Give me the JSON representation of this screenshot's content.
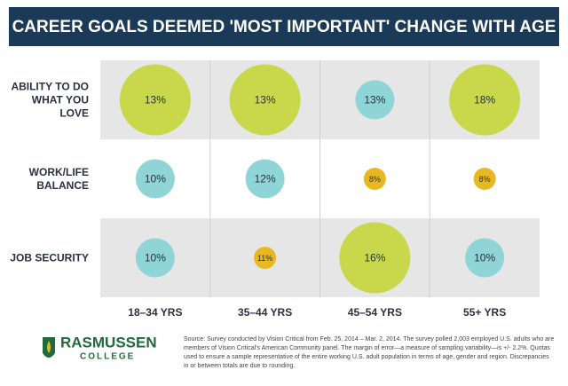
{
  "chart_data": {
    "type": "bubble",
    "title": "CAREER GOALS DEEMED 'MOST IMPORTANT' CHANGE WITH AGE",
    "categories": [
      "18–34 YRS",
      "35–44 YRS",
      "45–54 YRS",
      "55+ YRS"
    ],
    "series": [
      {
        "name": "ABILITY TO DO WHAT YOU LOVE",
        "values": [
          13,
          13,
          13,
          18
        ],
        "value_labels": [
          "13%",
          "13%",
          "13%",
          "18%"
        ]
      },
      {
        "name": "WORK/LIFE BALANCE",
        "values": [
          10,
          12,
          8,
          8
        ],
        "value_labels": [
          "10%",
          "12%",
          "8%",
          "8%"
        ]
      },
      {
        "name": "JOB SECURITY",
        "values": [
          10,
          11,
          16,
          10
        ],
        "value_labels": [
          "10%",
          "11%",
          "16%",
          "10%"
        ]
      }
    ],
    "rank_colors": [
      "#c9d84b",
      "#8fd4d6",
      "#e8b820"
    ],
    "logo": {
      "name": "RASMUSSEN",
      "sub": "COLLEGE"
    },
    "source": "Source: Survey conducted by Vision Critical from Feb. 25, 2014 – Mar. 2, 2014. The survey polled 2,003 employed U.S. adults who are members of Vision Critical's American Community panel. The margin of error—a measure of sampling variability—is +/- 2.2%. Quotas used to ensure a sample representative of the entire working U.S. adult population in terms of age, gender and region. Discrepancies in or between totals are due to rounding."
  }
}
